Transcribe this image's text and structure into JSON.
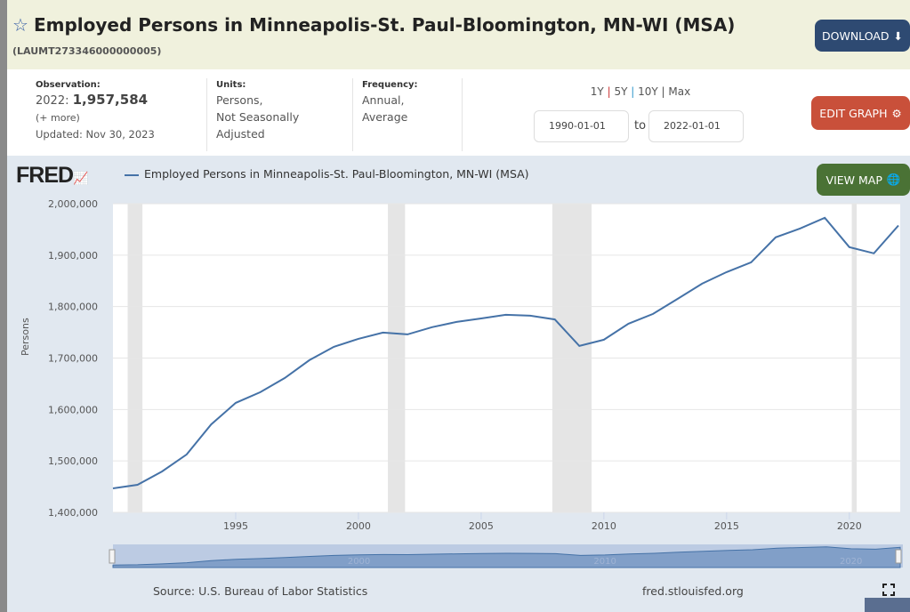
{
  "header": {
    "title": "Employed Persons in Minneapolis-St. Paul-Bloomington, MN-WI (MSA)",
    "series_id": "(LAUMT273346000000005)",
    "download_label": "DOWNLOAD"
  },
  "info": {
    "observation_label": "Observation:",
    "observation_year": "2022:",
    "observation_value": "1,957,584",
    "more": "(+ more)",
    "updated": "Updated: Nov 30, 2023",
    "units_label": "Units:",
    "units_lines": [
      "Persons,",
      "Not Seasonally",
      "Adjusted"
    ],
    "frequency_label": "Frequency:",
    "frequency_lines": [
      "Annual,",
      "Average"
    ]
  },
  "range": {
    "links": [
      "1Y",
      "5Y",
      "10Y",
      "Max"
    ],
    "from": "1990-01-01",
    "to_label": "to",
    "to": "2022-01-01",
    "edit_label": "EDIT GRAPH"
  },
  "graph": {
    "logo": "FRED",
    "view_map_label": "VIEW MAP",
    "source": "Source: U.S. Bureau of Labor Statistics",
    "url": "fred.stlouisfed.org"
  },
  "colors": {
    "line": "#4572a7",
    "recession": "#e5e5e5",
    "download": "#2e4a72",
    "edit": "#c9503a",
    "map": "#4a7235"
  },
  "chart_data": {
    "type": "line",
    "title": "",
    "legend": [
      "Employed Persons in Minneapolis-St. Paul-Bloomington, MN-WI (MSA)"
    ],
    "legend_placement": "top-left",
    "xlabel": "",
    "ylabel": "Persons",
    "xlim": [
      1990,
      2022
    ],
    "ylim": [
      1400000,
      2000000
    ],
    "yticks": [
      1400000,
      1500000,
      1600000,
      1700000,
      1800000,
      1900000,
      2000000
    ],
    "ytick_labels": [
      "1,400,000",
      "1,500,000",
      "1,600,000",
      "1,700,000",
      "1,800,000",
      "1,900,000",
      "2,000,000"
    ],
    "xticks": [
      1995,
      2000,
      2005,
      2010,
      2015,
      2020
    ],
    "xtick_labels": [
      "1995",
      "2000",
      "2005",
      "2010",
      "2015",
      "2020"
    ],
    "navigator_labels": [
      "2000",
      "2010",
      "2020"
    ],
    "recessions": [
      [
        1990.6,
        1991.2
      ],
      [
        2001.2,
        2001.9
      ],
      [
        2007.9,
        2009.5
      ],
      [
        2020.1,
        2020.3
      ]
    ],
    "grid": true,
    "x": [
      1990,
      1991,
      1992,
      1993,
      1994,
      1995,
      1996,
      1997,
      1998,
      1999,
      2000,
      2001,
      2002,
      2003,
      2004,
      2005,
      2006,
      2007,
      2008,
      2009,
      2010,
      2011,
      2012,
      2013,
      2014,
      2015,
      2016,
      2017,
      2018,
      2019,
      2020,
      2021,
      2022
    ],
    "series": [
      {
        "name": "Employed Persons in Minneapolis-St. Paul-Bloomington, MN-WI (MSA)",
        "values": [
          1446700,
          1453600,
          1479600,
          1512500,
          1571000,
          1612800,
          1633600,
          1661200,
          1695800,
          1721800,
          1737400,
          1749500,
          1746000,
          1760000,
          1770200,
          1777000,
          1784000,
          1782300,
          1775000,
          1723500,
          1735600,
          1766800,
          1785800,
          1815000,
          1844600,
          1867000,
          1886000,
          1934600,
          1952000,
          1972700,
          1915600,
          1903500,
          1957584
        ]
      }
    ]
  }
}
